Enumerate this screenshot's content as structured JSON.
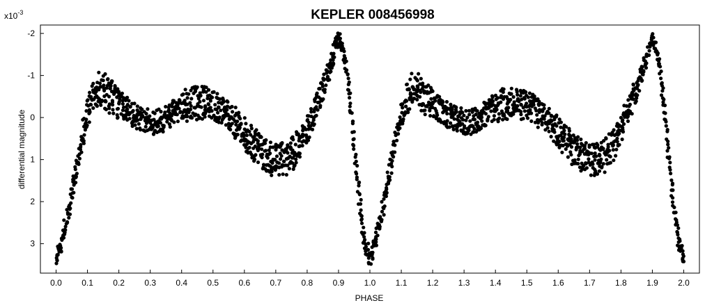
{
  "chart_data": {
    "type": "scatter",
    "title": "KEPLER 008456998",
    "xlabel": "PHASE",
    "ylabel": "differential magnitude",
    "yscale_label": {
      "base": "x10",
      "exponent": "-3"
    },
    "xlim": [
      -0.05,
      2.05
    ],
    "ylim": [
      -2.2,
      3.7
    ],
    "y_inverted": true,
    "grid": false,
    "x_ticks": [
      0.0,
      0.1,
      0.2,
      0.3,
      0.4,
      0.5,
      0.6,
      0.7,
      0.8,
      0.9,
      1.0,
      1.1,
      1.2,
      1.3,
      1.4,
      1.5,
      1.6,
      1.7,
      1.8,
      1.9,
      2.0
    ],
    "x_tick_labels": [
      "0.0",
      "0.1",
      "0.2",
      "0.3",
      "0.4",
      "0.5",
      "0.6",
      "0.7",
      "0.8",
      "0.9",
      "1.0",
      "1.1",
      "1.2",
      "1.3",
      "1.4",
      "1.5",
      "1.6",
      "1.7",
      "1.8",
      "1.9",
      "2.0"
    ],
    "y_ticks": [
      -2,
      -1,
      0,
      1,
      2,
      3
    ],
    "y_tick_labels": [
      "-2",
      "-1",
      "0",
      "1",
      "2",
      "3"
    ],
    "marker_color": "#000000",
    "series": [
      {
        "phase_period": 1.0,
        "repeat_offsets": [
          0,
          1
        ],
        "x": [
          0.0,
          0.02,
          0.04,
          0.06,
          0.08,
          0.1,
          0.12,
          0.14,
          0.16,
          0.18,
          0.2,
          0.22,
          0.24,
          0.26,
          0.28,
          0.3,
          0.32,
          0.34,
          0.36,
          0.38,
          0.4,
          0.42,
          0.44,
          0.46,
          0.48,
          0.5,
          0.52,
          0.54,
          0.56,
          0.58,
          0.6,
          0.62,
          0.64,
          0.66,
          0.68,
          0.7,
          0.72,
          0.74,
          0.76,
          0.78,
          0.8,
          0.82,
          0.84,
          0.86,
          0.88,
          0.9,
          0.92,
          0.94,
          0.96,
          0.98,
          1.0
        ],
        "y": [
          3.4,
          2.9,
          2.2,
          1.4,
          0.6,
          -0.1,
          -0.5,
          -0.7,
          -0.6,
          -0.45,
          -0.3,
          -0.2,
          -0.1,
          0.0,
          0.05,
          0.1,
          0.1,
          0.05,
          -0.05,
          -0.15,
          -0.25,
          -0.3,
          -0.35,
          -0.35,
          -0.35,
          -0.3,
          -0.2,
          -0.1,
          0.05,
          0.2,
          0.35,
          0.55,
          0.7,
          0.85,
          0.95,
          1.0,
          1.0,
          0.95,
          0.8,
          0.6,
          0.3,
          -0.1,
          -0.5,
          -0.9,
          -1.4,
          -1.9,
          -1.4,
          -0.1,
          1.5,
          2.8,
          3.4
        ],
        "scatter_mag": [
          0.15,
          0.15,
          0.2,
          0.2,
          0.25,
          0.3,
          0.35,
          0.4,
          0.45,
          0.4,
          0.35,
          0.3,
          0.3,
          0.3,
          0.3,
          0.3,
          0.3,
          0.3,
          0.3,
          0.3,
          0.35,
          0.4,
          0.4,
          0.4,
          0.4,
          0.35,
          0.35,
          0.35,
          0.35,
          0.35,
          0.35,
          0.4,
          0.4,
          0.4,
          0.4,
          0.4,
          0.4,
          0.4,
          0.4,
          0.35,
          0.35,
          0.3,
          0.3,
          0.25,
          0.2,
          0.15,
          0.1,
          0.1,
          0.1,
          0.15,
          0.15
        ]
      }
    ]
  }
}
